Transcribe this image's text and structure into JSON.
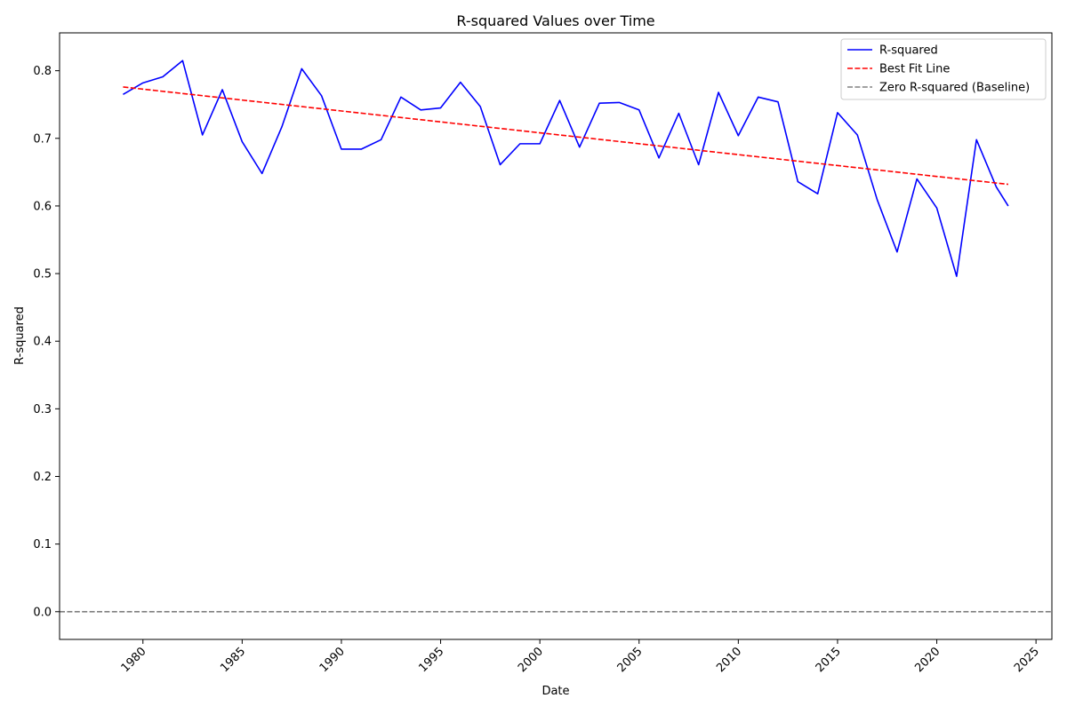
{
  "chart_data": {
    "type": "line",
    "title": "R-squared Values over Time",
    "xlabel": "Date",
    "ylabel": "R-squared",
    "xlim": [
      1975.8,
      2025.8
    ],
    "ylim": [
      -0.041,
      0.856
    ],
    "x_ticks": [
      1980,
      1985,
      1990,
      1995,
      2000,
      2005,
      2010,
      2015,
      2020,
      2025
    ],
    "y_ticks": [
      0.0,
      0.1,
      0.2,
      0.3,
      0.4,
      0.5,
      0.6,
      0.7,
      0.8
    ],
    "x_tick_labels": [
      "1980",
      "1985",
      "1990",
      "1995",
      "2000",
      "2005",
      "2010",
      "2015",
      "2020",
      "2025"
    ],
    "y_tick_labels": [
      "0.0",
      "0.1",
      "0.2",
      "0.3",
      "0.4",
      "0.5",
      "0.6",
      "0.7",
      "0.8"
    ],
    "grid": false,
    "legend_position": "top-right",
    "series": [
      {
        "name": "R-squared",
        "color": "#0000ff",
        "style": "solid",
        "x": [
          1979,
          1980,
          1981,
          1982,
          1983,
          1984,
          1985,
          1986,
          1987,
          1988,
          1989,
          1990,
          1991,
          1992,
          1993,
          1994,
          1995,
          1996,
          1997,
          1998,
          1999,
          2000,
          2001,
          2002,
          2003,
          2004,
          2005,
          2006,
          2007,
          2008,
          2009,
          2010,
          2011,
          2012,
          2013,
          2014,
          2015,
          2016,
          2017,
          2018,
          2019,
          2020,
          2021,
          2022,
          2023,
          2023.6
        ],
        "y": [
          0.765,
          0.782,
          0.791,
          0.815,
          0.705,
          0.772,
          0.695,
          0.648,
          0.717,
          0.803,
          0.763,
          0.684,
          0.684,
          0.698,
          0.761,
          0.742,
          0.745,
          0.783,
          0.747,
          0.661,
          0.692,
          0.692,
          0.756,
          0.687,
          0.752,
          0.753,
          0.742,
          0.671,
          0.737,
          0.661,
          0.768,
          0.704,
          0.761,
          0.754,
          0.636,
          0.618,
          0.738,
          0.705,
          0.609,
          0.532,
          0.64,
          0.597,
          0.496,
          0.698,
          0.628,
          0.6
        ]
      },
      {
        "name": "Best Fit Line",
        "color": "#ff0000",
        "style": "dashed",
        "x": [
          1979,
          2023.6
        ],
        "y": [
          0.776,
          0.632
        ]
      },
      {
        "name": "Zero R-squared (Baseline)",
        "color": "#808080",
        "style": "dashed",
        "x": [
          1975.8,
          2025.8
        ],
        "y": [
          0.0,
          0.0
        ]
      }
    ]
  }
}
